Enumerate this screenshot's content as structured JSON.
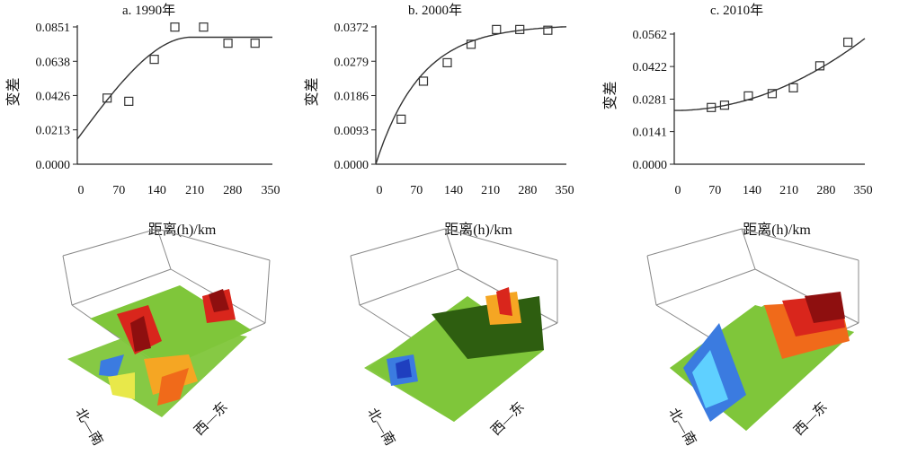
{
  "figure": {
    "x_axis_label": "距离(h)/km",
    "y_axis_label": "变差",
    "surface_axis_north_south": "北—南",
    "surface_axis_west_east": "西—东"
  },
  "colors": {
    "axis": "#222222",
    "curve": "#333333",
    "marker": "#333333",
    "surface_palette": [
      "#1f3fbf",
      "#3b7be0",
      "#5fd0ff",
      "#7fc63a",
      "#4a8f1e",
      "#2e5e10",
      "#e8e84a",
      "#f5a623",
      "#f06a1a",
      "#d9261c",
      "#8e0f0f"
    ]
  },
  "chart_data": [
    {
      "type": "scatter",
      "title": "a. 1990年",
      "xlabel": "距离(h)/km",
      "ylabel": "变差",
      "xlim": [
        0,
        360
      ],
      "ylim": [
        0,
        0.0851
      ],
      "x_ticks": [
        "0",
        "70",
        "140",
        "210",
        "280",
        "350"
      ],
      "y_ticks": [
        "0.0000",
        "0.0213",
        "0.0426",
        "0.0638",
        "0.0851"
      ],
      "points": [
        [
          55,
          0.041
        ],
        [
          95,
          0.039
        ],
        [
          142,
          0.065
        ],
        [
          180,
          0.085
        ],
        [
          233,
          0.085
        ],
        [
          278,
          0.075
        ],
        [
          328,
          0.075
        ]
      ],
      "fitted_curve": {
        "model": "spherical",
        "nugget": 0.0155,
        "sill": 0.0787,
        "range": 210
      }
    },
    {
      "type": "scatter",
      "title": "b. 2000年",
      "xlabel": "距离(h)/km",
      "ylabel": "变差",
      "xlim": [
        0,
        360
      ],
      "ylim": [
        0,
        0.0372
      ],
      "x_ticks": [
        "0",
        "70",
        "140",
        "210",
        "280",
        "350"
      ],
      "y_ticks": [
        "0.0000",
        "0.0093",
        "0.0186",
        "0.0279",
        "0.0372"
      ],
      "points": [
        [
          48,
          0.0122
        ],
        [
          90,
          0.0225
        ],
        [
          135,
          0.0275
        ],
        [
          180,
          0.0325
        ],
        [
          228,
          0.0365
        ],
        [
          272,
          0.0365
        ],
        [
          325,
          0.0363
        ]
      ],
      "fitted_curve": {
        "model": "exponential",
        "nugget": 0,
        "sill": 0.0378,
        "range_param": 85
      }
    },
    {
      "type": "scatter",
      "title": "c. 2010年",
      "xlabel": "距离(h)/km",
      "ylabel": "变差",
      "xlim": [
        0,
        360
      ],
      "ylim": [
        0,
        0.0562
      ],
      "x_ticks": [
        "0",
        "70",
        "140",
        "210",
        "280",
        "350"
      ],
      "y_ticks": [
        "0.0000",
        "0.0141",
        "0.0281",
        "0.0422",
        "0.0562"
      ],
      "points": [
        [
          70,
          0.0245
        ],
        [
          95,
          0.0255
        ],
        [
          140,
          0.0295
        ],
        [
          185,
          0.0305
        ],
        [
          225,
          0.033
        ],
        [
          275,
          0.0425
        ],
        [
          328,
          0.0527
        ]
      ],
      "fitted_curve": {
        "model": "quadratic",
        "nugget": 0.0232,
        "coef": 2.4e-07
      }
    }
  ]
}
